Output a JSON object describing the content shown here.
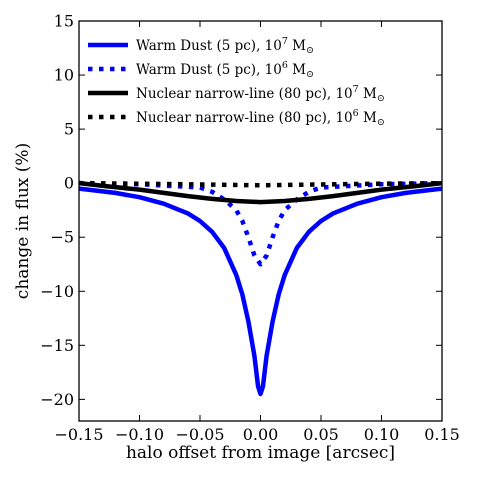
{
  "chart_data": {
    "type": "line",
    "xlabel": "halo offset from image [arcsec]",
    "ylabel": "change in flux (%)",
    "xlim": [
      -0.15,
      0.15
    ],
    "ylim": [
      -22,
      15
    ],
    "xticks": [
      -0.15,
      -0.1,
      -0.05,
      0.0,
      0.05,
      0.1,
      0.15
    ],
    "xtick_labels": [
      "−0.15",
      "−0.10",
      "−0.05",
      "0.00",
      "0.05",
      "0.10",
      "0.15"
    ],
    "yticks": [
      15,
      10,
      5,
      0,
      -5,
      -10,
      -15,
      -20
    ],
    "ytick_labels": [
      "15",
      "10",
      "5",
      "0",
      "−5",
      "−10",
      "−15",
      "−20"
    ],
    "grid": false,
    "legend_position": "top-left",
    "series": [
      {
        "name": "Warm Dust (5 pc), 10^7 M⊙",
        "label_main": "Warm Dust (5 pc), 10",
        "label_exp": "7",
        "label_unit": " M",
        "label_sym": "⊙",
        "color": "#0000ff",
        "style": "solid",
        "x": [
          -0.15,
          -0.12,
          -0.1,
          -0.08,
          -0.06,
          -0.05,
          -0.04,
          -0.03,
          -0.02,
          -0.015,
          -0.01,
          -0.005,
          -0.002,
          0.0,
          0.002,
          0.005,
          0.01,
          0.015,
          0.02,
          0.03,
          0.04,
          0.05,
          0.06,
          0.08,
          0.1,
          0.12,
          0.15
        ],
        "y": [
          -0.5,
          -0.9,
          -1.3,
          -1.9,
          -2.8,
          -3.5,
          -4.5,
          -6.0,
          -8.5,
          -10.3,
          -12.8,
          -16.0,
          -18.8,
          -19.5,
          -18.8,
          -16.0,
          -12.8,
          -10.3,
          -8.5,
          -6.0,
          -4.5,
          -3.5,
          -2.8,
          -1.9,
          -1.3,
          -0.9,
          -0.5
        ]
      },
      {
        "name": "Warm Dust (5 pc), 10^6 M⊙",
        "label_main": "Warm Dust (5 pc), 10",
        "label_exp": "6",
        "label_unit": " M",
        "label_sym": "⊙",
        "color": "#0000ff",
        "style": "dotted",
        "x": [
          -0.15,
          -0.1,
          -0.05,
          -0.04,
          -0.03,
          -0.02,
          -0.015,
          -0.01,
          -0.005,
          0.0,
          0.005,
          0.01,
          0.015,
          0.02,
          0.03,
          0.04,
          0.05,
          0.1,
          0.15
        ],
        "y": [
          0.0,
          -0.1,
          -0.4,
          -0.8,
          -1.5,
          -2.5,
          -3.5,
          -5.0,
          -6.7,
          -7.5,
          -6.7,
          -5.0,
          -3.5,
          -2.5,
          -1.5,
          -0.8,
          -0.4,
          -0.1,
          0.0
        ]
      },
      {
        "name": "Nuclear narrow-line (80 pc), 10^7 M⊙",
        "label_main": "Nuclear narrow-line (80 pc), 10",
        "label_exp": "7",
        "label_unit": " M",
        "label_sym": "⊙",
        "color": "#000000",
        "style": "solid",
        "x": [
          -0.15,
          -0.13,
          -0.1,
          -0.08,
          -0.06,
          -0.04,
          -0.02,
          0.0,
          0.02,
          0.04,
          0.06,
          0.08,
          0.1,
          0.13,
          0.15
        ],
        "y": [
          0.0,
          -0.25,
          -0.6,
          -0.9,
          -1.2,
          -1.45,
          -1.65,
          -1.75,
          -1.65,
          -1.45,
          -1.2,
          -0.9,
          -0.6,
          -0.25,
          0.0
        ]
      },
      {
        "name": "Nuclear narrow-line (80 pc), 10^6 M⊙",
        "label_main": "Nuclear narrow-line (80 pc), 10",
        "label_exp": "6",
        "label_unit": " M",
        "label_sym": "⊙",
        "color": "#000000",
        "style": "dotted",
        "x": [
          -0.15,
          -0.1,
          -0.05,
          0.0,
          0.05,
          0.1,
          0.15
        ],
        "y": [
          0.0,
          -0.05,
          -0.12,
          -0.2,
          -0.12,
          -0.05,
          0.0
        ]
      }
    ]
  }
}
